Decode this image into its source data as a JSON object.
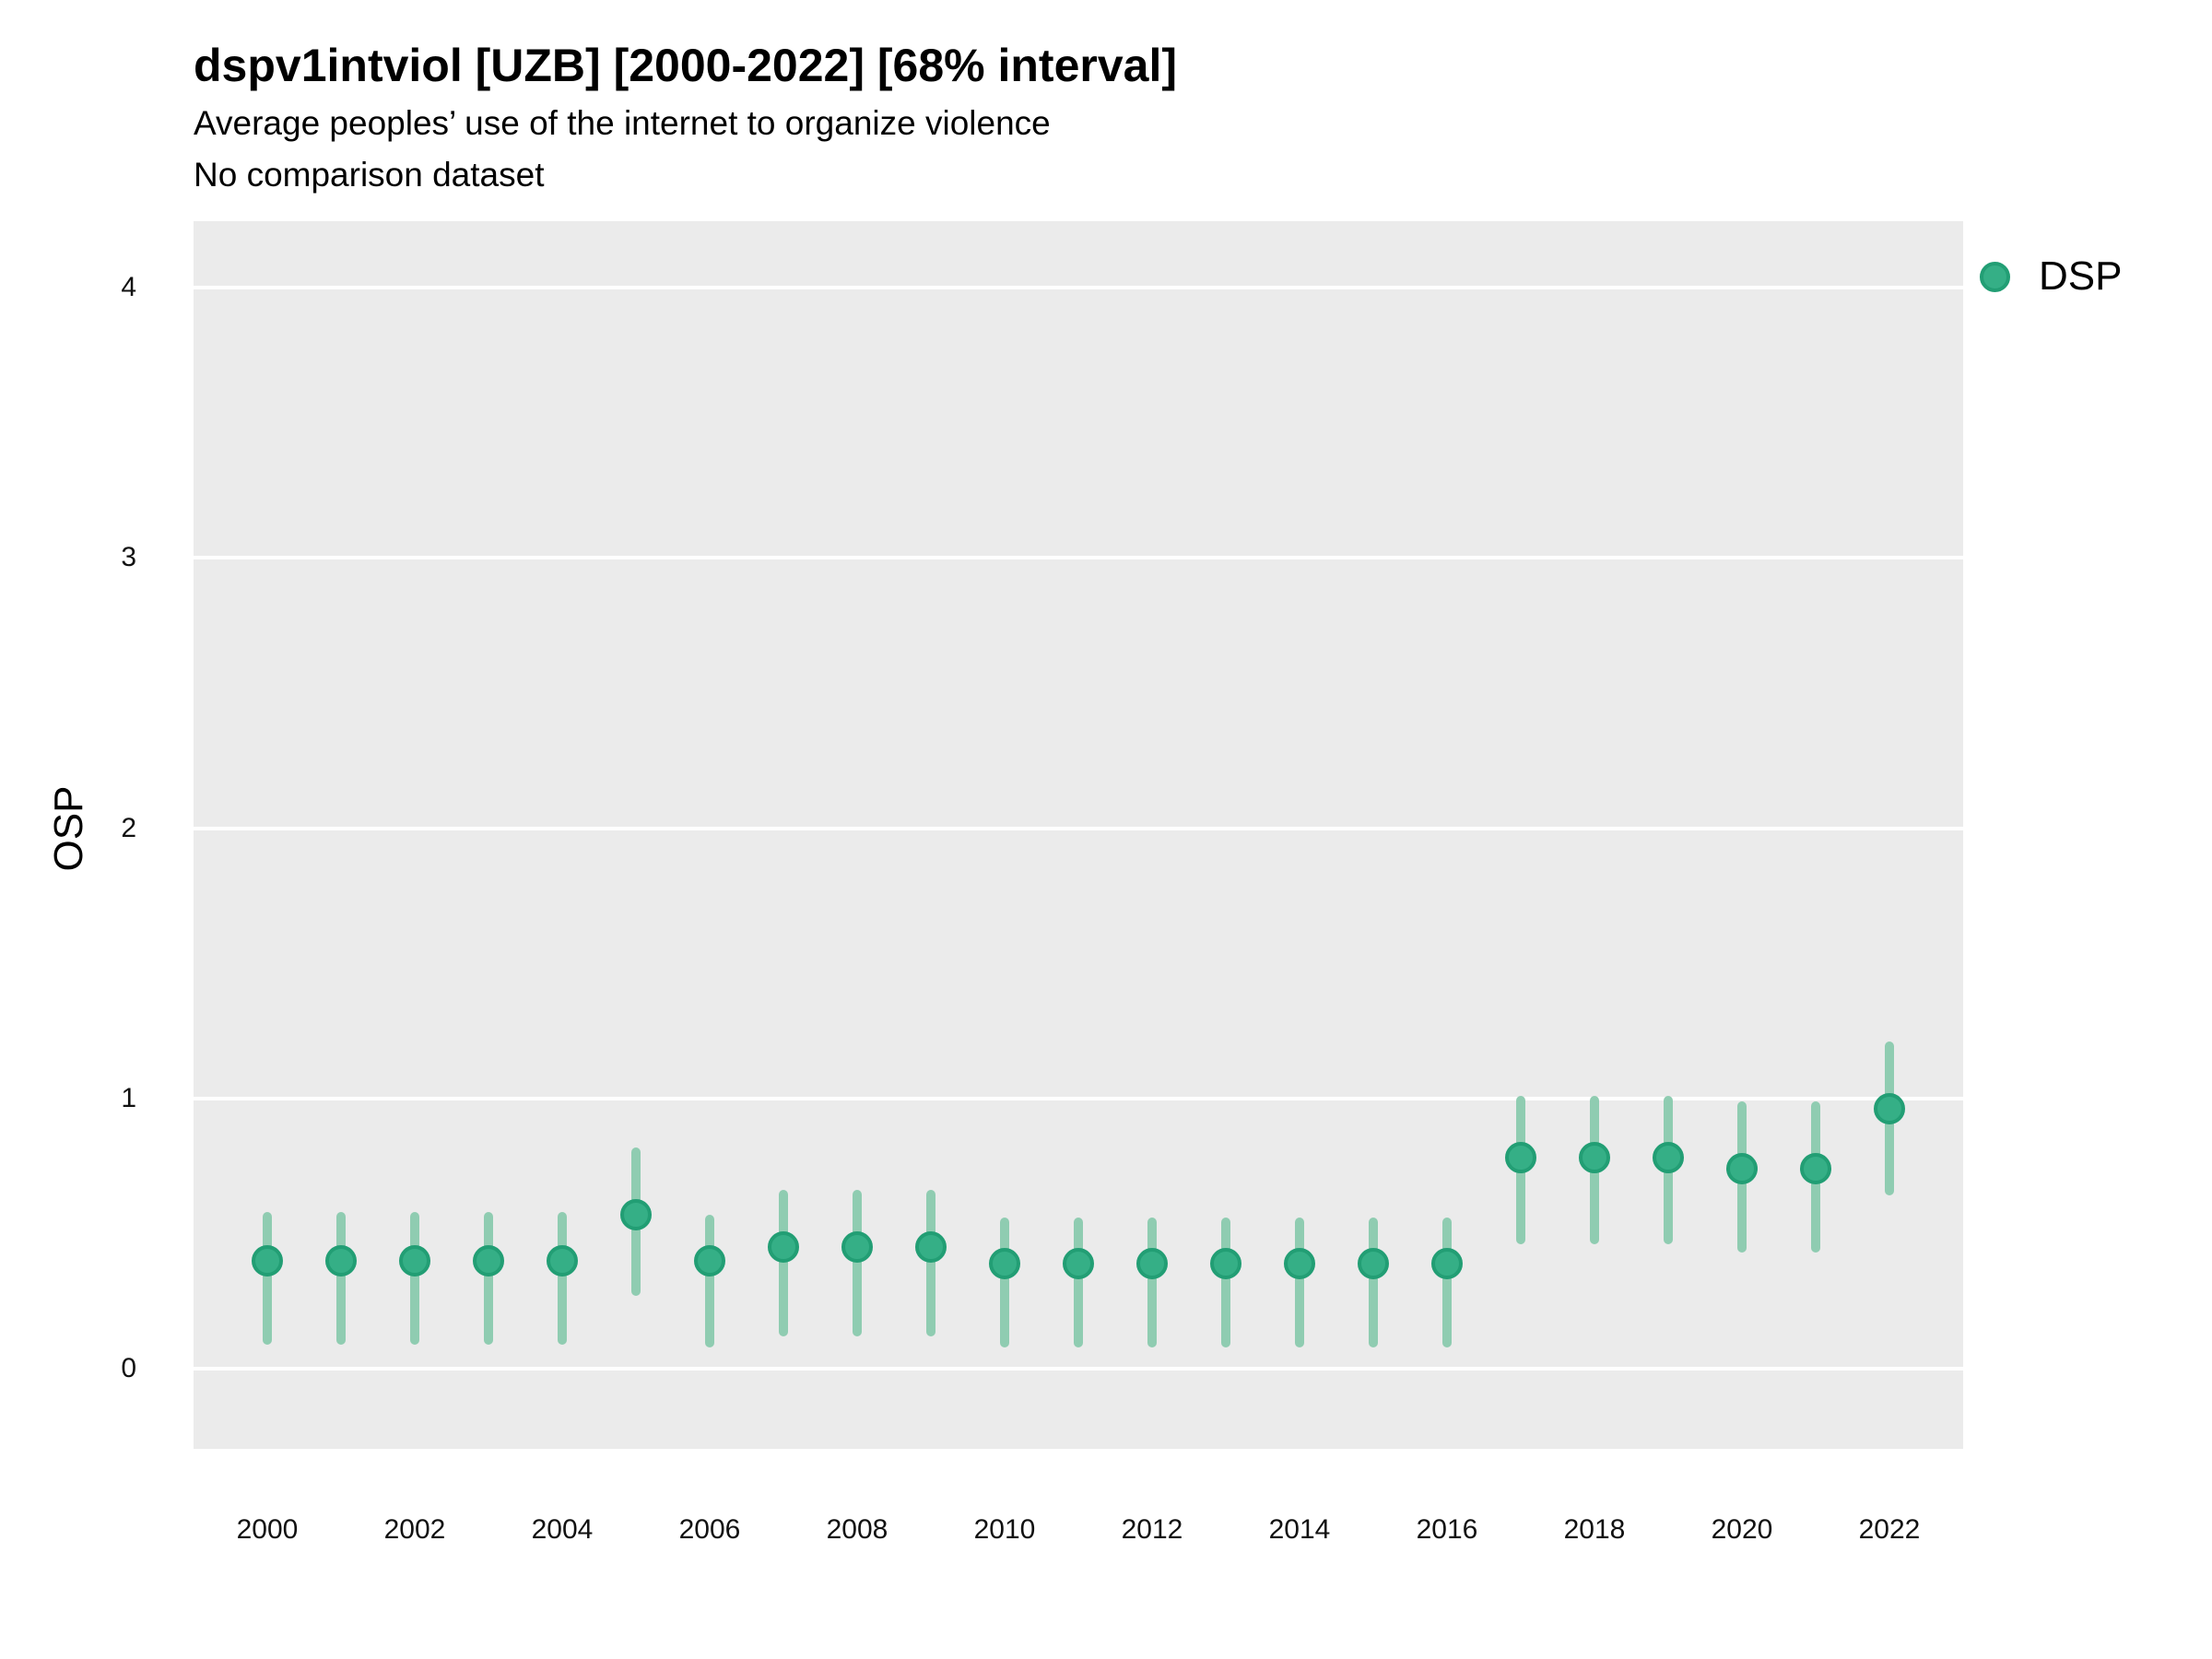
{
  "header": {
    "title": "dspv1intviol [UZB] [2000-2022] [68% interval]",
    "subtitle": "Average peoples’ use of the internet to organize violence",
    "note": "No comparison dataset"
  },
  "legend": {
    "label": "DSP"
  },
  "colors": {
    "panel_background": "#EBEBEB",
    "gridline": "#FFFFFF",
    "point_fill": "#35AF86",
    "point_stroke": "#229E74",
    "interval_line": "#8FCCB1",
    "text": "#000000"
  },
  "chart_data": {
    "type": "pointrange",
    "title": "dspv1intviol [UZB] [2000-2022] [68% interval]",
    "subtitle": "Average peoples’ use of the internet to organize violence",
    "note": "No comparison dataset",
    "xlabel": "",
    "ylabel": "OSP",
    "ylim": [
      -0.3,
      4.25
    ],
    "yticks": [
      0,
      1,
      2,
      3,
      4
    ],
    "xticks": [
      2000,
      2002,
      2004,
      2006,
      2008,
      2010,
      2012,
      2014,
      2016,
      2018,
      2020,
      2022
    ],
    "grid": "horizontal-major-only",
    "legend_position": "right-top",
    "x": [
      2000,
      2001,
      2002,
      2003,
      2004,
      2005,
      2006,
      2007,
      2008,
      2009,
      2010,
      2011,
      2012,
      2013,
      2014,
      2015,
      2016,
      2017,
      2018,
      2019,
      2020,
      2021,
      2022
    ],
    "series": [
      {
        "name": "DSP",
        "interval": "68%",
        "values": [
          0.4,
          0.4,
          0.4,
          0.4,
          0.4,
          0.57,
          0.4,
          0.45,
          0.45,
          0.45,
          0.39,
          0.39,
          0.39,
          0.39,
          0.39,
          0.39,
          0.39,
          0.78,
          0.78,
          0.78,
          0.74,
          0.74,
          0.96
        ],
        "lower": [
          0.09,
          0.09,
          0.09,
          0.09,
          0.09,
          0.27,
          0.08,
          0.12,
          0.12,
          0.12,
          0.08,
          0.08,
          0.08,
          0.08,
          0.08,
          0.08,
          0.08,
          0.46,
          0.46,
          0.46,
          0.43,
          0.43,
          0.64
        ],
        "upper": [
          0.58,
          0.58,
          0.58,
          0.58,
          0.58,
          0.82,
          0.57,
          0.66,
          0.66,
          0.66,
          0.56,
          0.56,
          0.56,
          0.56,
          0.56,
          0.56,
          0.56,
          1.01,
          1.01,
          1.01,
          0.99,
          0.99,
          1.21
        ]
      }
    ]
  }
}
